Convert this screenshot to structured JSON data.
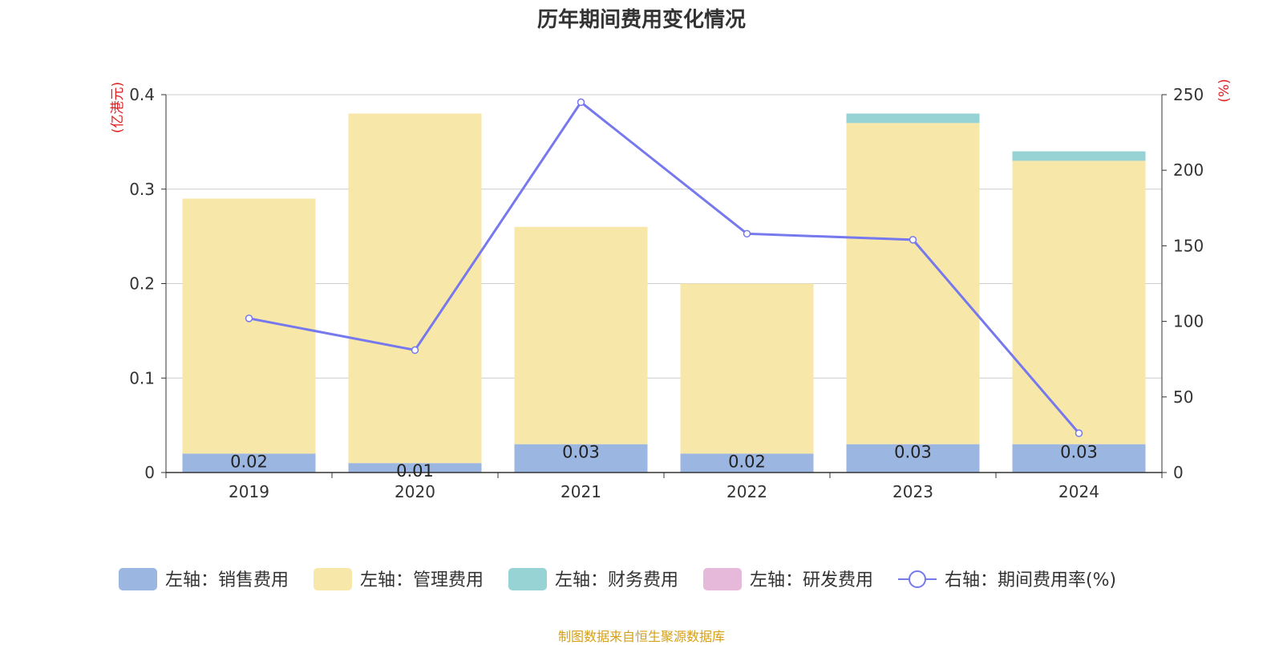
{
  "chart_title": "历年期间费用变化情况",
  "source_note": "制图数据来自恒生聚源数据库",
  "chart_data": {
    "type": "bar",
    "title": "历年期间费用变化情况",
    "categories": [
      "2019",
      "2020",
      "2021",
      "2022",
      "2023",
      "2024"
    ],
    "left_axis": {
      "label": "(亿港元)",
      "ylim": [
        0,
        0.4
      ],
      "ticks": [
        "0",
        "0.1",
        "0.2",
        "0.3",
        "0.4"
      ],
      "tick_values": [
        0,
        0.1,
        0.2,
        0.3,
        0.4
      ]
    },
    "right_axis": {
      "label": "(%)",
      "ylim": [
        0,
        250
      ],
      "ticks": [
        "0",
        "50",
        "100",
        "150",
        "200",
        "250"
      ],
      "tick_values": [
        0,
        50,
        100,
        150,
        200,
        250
      ]
    },
    "stacked_series": [
      {
        "name": "左轴：销售费用",
        "color": "#9bb6e0",
        "values": [
          0.02,
          0.01,
          0.03,
          0.02,
          0.03,
          0.03
        ],
        "labels": [
          "0.02",
          "0.01",
          "0.03",
          "0.02",
          "0.03",
          "0.03"
        ]
      },
      {
        "name": "左轴：管理费用",
        "color": "#f7e7a9",
        "values": [
          0.27,
          0.37,
          0.23,
          0.18,
          0.34,
          0.3
        ]
      },
      {
        "name": "左轴：财务费用",
        "color": "#97d3d4",
        "values": [
          0,
          0,
          0,
          0,
          0.01,
          0.01
        ]
      },
      {
        "name": "左轴：研发费用",
        "color": "#e6b8da",
        "values": [
          0,
          0,
          0,
          0,
          0,
          0
        ]
      }
    ],
    "line_series": {
      "name": "右轴：期间费用率(%)",
      "color": "#7678ed",
      "values": [
        102,
        81,
        245,
        158,
        154,
        26
      ]
    },
    "grid": true,
    "legend_position": "bottom"
  }
}
